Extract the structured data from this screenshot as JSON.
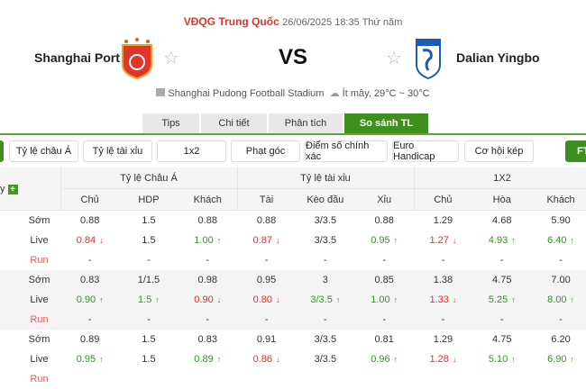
{
  "match": {
    "league": "VĐQG Trung Quốc",
    "datetime": "26/06/2025 18:35 Thứ năm",
    "home": "Shanghai Port",
    "away": "Dalian Yingbo",
    "vs": "VS",
    "stadium": "Shanghai Pudong Football Stadium",
    "weather": "Ít mây, 29°C ~ 30°C"
  },
  "tabs": [
    {
      "label": "Tips"
    },
    {
      "label": "Chi tiết"
    },
    {
      "label": "Phân tích"
    },
    {
      "label": "So sánh TL",
      "active": true
    }
  ],
  "filters": [
    "Tỷ lệ châu Á",
    "Tỷ lệ tài xỉu",
    "1x2",
    "Phạt góc",
    "Điểm số chính xác",
    "Euro Handicap",
    "Cơ hội kép"
  ],
  "ft_label": "FT",
  "table": {
    "company_header": "y",
    "groups": [
      "Tỷ lệ Châu Á",
      "Tỷ lệ tài xỉu",
      "1X2"
    ],
    "columns": [
      "Chủ",
      "HDP",
      "Khách",
      "Tài",
      "Kèo đầu",
      "Xỉu",
      "Chủ",
      "Hòa",
      "Khách"
    ],
    "row_labels": [
      "Sớm",
      "Live",
      "Run"
    ],
    "blocks": [
      {
        "rows": [
          [
            [
              "0.88",
              ""
            ],
            [
              "1.5",
              ""
            ],
            [
              "0.88",
              ""
            ],
            [
              "0.88",
              ""
            ],
            [
              "3/3.5",
              ""
            ],
            [
              "0.88",
              ""
            ],
            [
              "1.29",
              ""
            ],
            [
              "4.68",
              ""
            ],
            [
              "5.90",
              ""
            ]
          ],
          [
            [
              "0.84",
              "down"
            ],
            [
              "1.5",
              ""
            ],
            [
              "1.00",
              "up"
            ],
            [
              "0.87",
              "down"
            ],
            [
              "3/3.5",
              ""
            ],
            [
              "0.95",
              "up"
            ],
            [
              "1.27",
              "down"
            ],
            [
              "4.93",
              "up"
            ],
            [
              "6.40",
              "up"
            ]
          ],
          [
            [
              "-",
              ""
            ],
            [
              "-",
              ""
            ],
            [
              "-",
              ""
            ],
            [
              "-",
              ""
            ],
            [
              "-",
              ""
            ],
            [
              "-",
              ""
            ],
            [
              "-",
              ""
            ],
            [
              "-",
              ""
            ],
            [
              "-",
              ""
            ]
          ]
        ]
      },
      {
        "rows": [
          [
            [
              "0.83",
              ""
            ],
            [
              "1/1.5",
              ""
            ],
            [
              "0.98",
              ""
            ],
            [
              "0.95",
              ""
            ],
            [
              "3",
              ""
            ],
            [
              "0.85",
              ""
            ],
            [
              "1.38",
              ""
            ],
            [
              "4.75",
              ""
            ],
            [
              "7.00",
              ""
            ]
          ],
          [
            [
              "0.90",
              "up"
            ],
            [
              "1.5",
              "up"
            ],
            [
              "0.90",
              "down"
            ],
            [
              "0.80",
              "down"
            ],
            [
              "3/3.5",
              "up"
            ],
            [
              "1.00",
              "up"
            ],
            [
              "1.33",
              "down"
            ],
            [
              "5.25",
              "up"
            ],
            [
              "8.00",
              "up"
            ]
          ],
          [
            [
              "-",
              ""
            ],
            [
              "-",
              ""
            ],
            [
              "-",
              ""
            ],
            [
              "-",
              ""
            ],
            [
              "-",
              ""
            ],
            [
              "-",
              ""
            ],
            [
              "-",
              ""
            ],
            [
              "-",
              ""
            ],
            [
              "-",
              ""
            ]
          ]
        ]
      },
      {
        "rows": [
          [
            [
              "0.89",
              ""
            ],
            [
              "1.5",
              ""
            ],
            [
              "0.83",
              ""
            ],
            [
              "0.91",
              ""
            ],
            [
              "3/3.5",
              ""
            ],
            [
              "0.81",
              ""
            ],
            [
              "1.29",
              ""
            ],
            [
              "4.75",
              ""
            ],
            [
              "6.20",
              ""
            ]
          ],
          [
            [
              "0.95",
              "up"
            ],
            [
              "1.5",
              ""
            ],
            [
              "0.89",
              "up"
            ],
            [
              "0.86",
              "down"
            ],
            [
              "3/3.5",
              ""
            ],
            [
              "0.96",
              "up"
            ],
            [
              "1.28",
              "down"
            ],
            [
              "5.10",
              "up"
            ],
            [
              "6.90",
              "up"
            ]
          ],
          [
            [
              "",
              ""
            ],
            [
              "",
              ""
            ],
            [
              "",
              ""
            ],
            [
              "",
              ""
            ],
            [
              "",
              ""
            ],
            [
              "",
              ""
            ],
            [
              "",
              ""
            ],
            [
              "",
              ""
            ],
            [
              "",
              ""
            ]
          ]
        ]
      }
    ]
  },
  "colors": {
    "accent": "#3f8f1f",
    "up": "#2e9a1e",
    "down": "#ee2b2b",
    "league": "#e0352b"
  }
}
